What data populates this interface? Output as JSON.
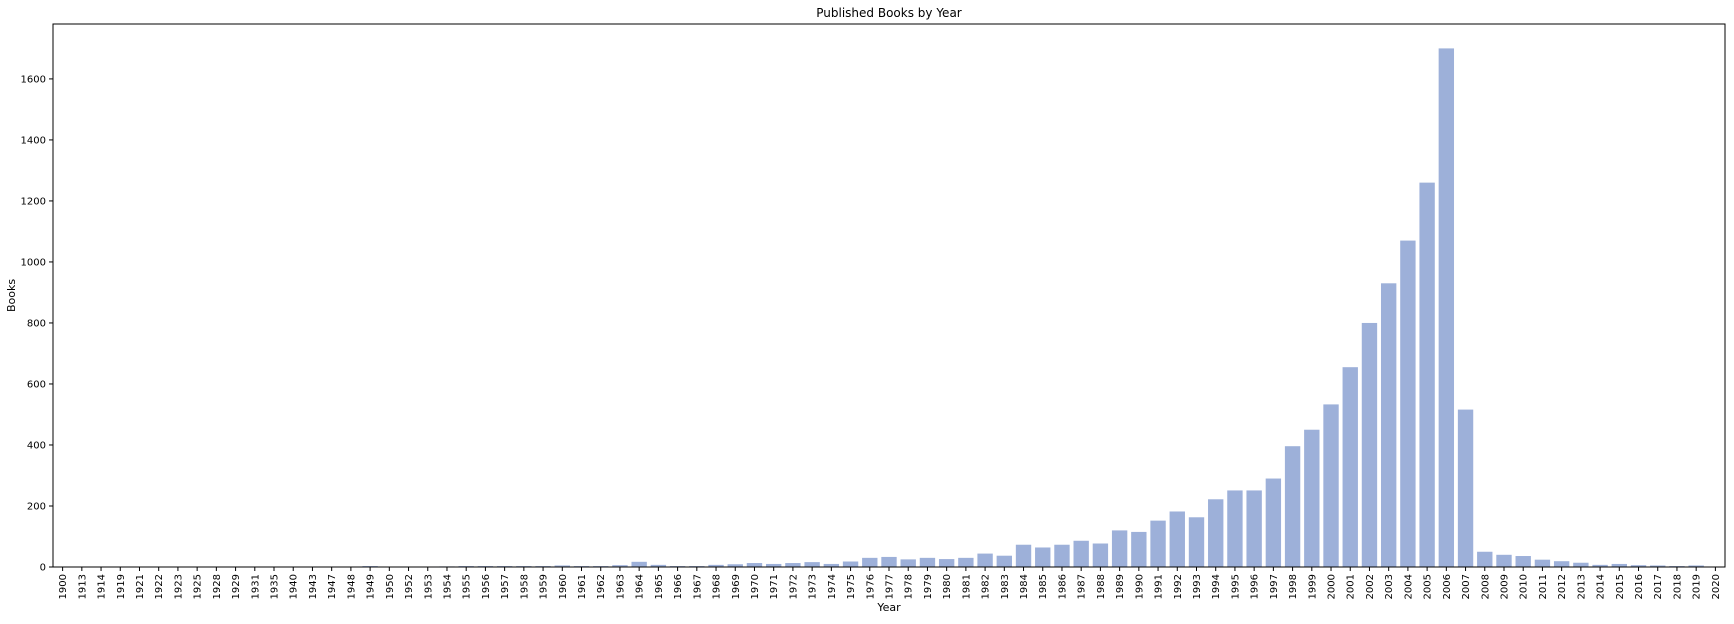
{
  "chart_data": {
    "type": "bar",
    "title": "Published Books by Year",
    "xlabel": "Year",
    "ylabel": "Books",
    "ylim": [
      0,
      1780
    ],
    "yticks": [
      0,
      200,
      400,
      600,
      800,
      1000,
      1200,
      1400,
      1600
    ],
    "bar_color": "#9db0d9",
    "grid": false,
    "categories": [
      "1900",
      "1913",
      "1914",
      "1919",
      "1921",
      "1922",
      "1923",
      "1925",
      "1928",
      "1929",
      "1931",
      "1935",
      "1940",
      "1943",
      "1947",
      "1948",
      "1949",
      "1950",
      "1952",
      "1953",
      "1954",
      "1955",
      "1956",
      "1957",
      "1958",
      "1959",
      "1960",
      "1961",
      "1962",
      "1963",
      "1964",
      "1965",
      "1966",
      "1967",
      "1968",
      "1969",
      "1970",
      "1971",
      "1972",
      "1973",
      "1974",
      "1975",
      "1976",
      "1977",
      "1978",
      "1979",
      "1980",
      "1981",
      "1982",
      "1983",
      "1984",
      "1985",
      "1986",
      "1987",
      "1988",
      "1989",
      "1990",
      "1991",
      "1992",
      "1993",
      "1994",
      "1995",
      "1996",
      "1997",
      "1998",
      "1999",
      "2000",
      "2001",
      "2002",
      "2003",
      "2004",
      "2005",
      "2006",
      "2007",
      "2008",
      "2009",
      "2010",
      "2011",
      "2012",
      "2013",
      "2014",
      "2015",
      "2016",
      "2017",
      "2018",
      "2019",
      "2020"
    ],
    "values": [
      1,
      1,
      1,
      1,
      1,
      1,
      1,
      1,
      1,
      1,
      1,
      1,
      1,
      1,
      1,
      1,
      3,
      1,
      1,
      1,
      2,
      3,
      3,
      3,
      3,
      3,
      5,
      3,
      3,
      6,
      17,
      7,
      3,
      3,
      7,
      9,
      13,
      10,
      13,
      16,
      10,
      18,
      30,
      33,
      25,
      30,
      26,
      30,
      44,
      37,
      73,
      64,
      73,
      86,
      77,
      120,
      115,
      152,
      182,
      163,
      222,
      251,
      251,
      290,
      396,
      450,
      533,
      655,
      800,
      930,
      1070,
      1260,
      1700,
      516,
      50,
      40,
      36,
      24,
      19,
      14,
      7,
      10,
      6,
      5,
      3,
      5,
      1
    ]
  }
}
